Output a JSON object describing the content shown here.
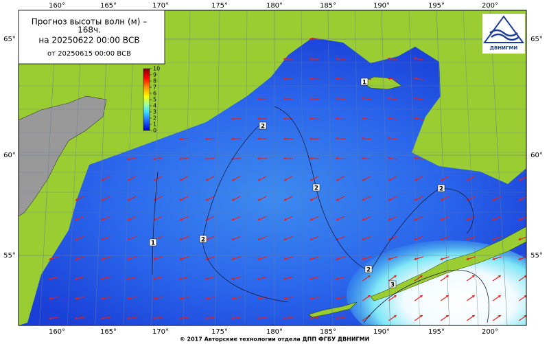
{
  "title": {
    "line1": "Прогноз высоты волн (м) –",
    "line2": "168ч.",
    "line3": "на 20250622 00:00 ВСВ",
    "line4": "от 20250615 00:00 ВСВ"
  },
  "logo": "ДВНИГМИ",
  "longitude_labels": [
    "160°",
    "165°",
    "170°",
    "175°",
    "180°",
    "185°",
    "190°",
    "195°",
    "200°"
  ],
  "latitude_labels": [
    "65°",
    "60°",
    "55°"
  ],
  "colorbar": {
    "ticks": [
      10,
      9,
      8,
      7,
      6,
      5,
      4,
      3,
      2,
      1,
      0
    ]
  },
  "contour_labels": [
    "2",
    "2",
    "2",
    "2",
    "2",
    "3",
    "1",
    "1"
  ],
  "footer": "© 2017 Авторские технологии отдела ДПП ФГБУ ДВНИГМИ"
}
